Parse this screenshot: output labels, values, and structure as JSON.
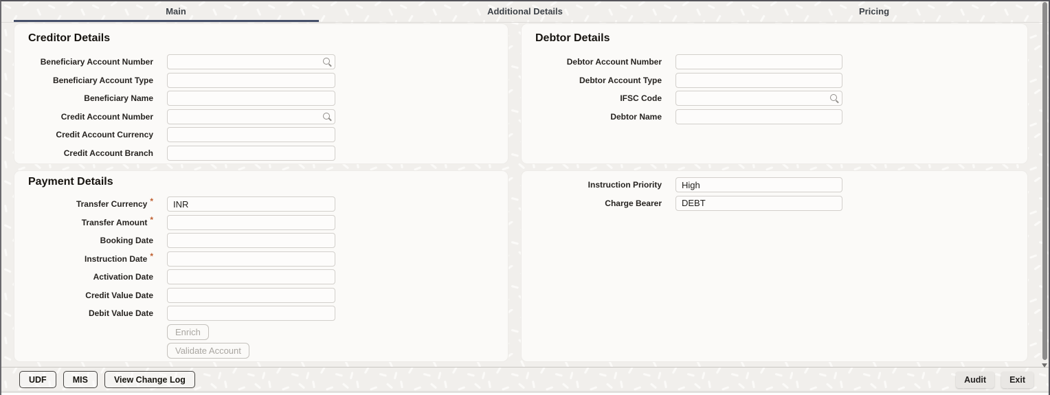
{
  "required_marker": "*",
  "tabs": [
    {
      "label": "Main",
      "active": true
    },
    {
      "label": "Additional Details",
      "active": false
    },
    {
      "label": "Pricing",
      "active": false
    }
  ],
  "panels": {
    "creditor": {
      "title": "Creditor Details",
      "fields": [
        {
          "label": "Beneficiary Account Number",
          "value": "",
          "search": true,
          "required": false
        },
        {
          "label": "Beneficiary Account Type",
          "value": "",
          "search": false,
          "required": false
        },
        {
          "label": "Beneficiary Name",
          "value": "",
          "search": false,
          "required": false
        },
        {
          "label": "Credit Account Number",
          "value": "",
          "search": true,
          "required": false
        },
        {
          "label": "Credit Account Currency",
          "value": "",
          "search": false,
          "required": false
        },
        {
          "label": "Credit Account Branch",
          "value": "",
          "search": false,
          "required": false
        }
      ]
    },
    "debtor": {
      "title": "Debtor Details",
      "fields": [
        {
          "label": "Debtor Account Number",
          "value": "",
          "search": false,
          "required": false
        },
        {
          "label": "Debtor Account Type",
          "value": "",
          "search": false,
          "required": false
        },
        {
          "label": "IFSC Code",
          "value": "",
          "search": true,
          "required": false
        },
        {
          "label": "Debtor Name",
          "value": "",
          "search": false,
          "required": false
        }
      ]
    },
    "payment": {
      "title": "Payment Details",
      "fields": [
        {
          "label": "Transfer Currency",
          "value": "INR",
          "search": false,
          "required": true
        },
        {
          "label": "Transfer Amount",
          "value": "",
          "search": false,
          "required": true
        },
        {
          "label": "Booking Date",
          "value": "",
          "search": false,
          "required": false
        },
        {
          "label": "Instruction Date",
          "value": "",
          "search": false,
          "required": true
        },
        {
          "label": "Activation Date",
          "value": "",
          "search": false,
          "required": false
        },
        {
          "label": "Credit Value Date",
          "value": "",
          "search": false,
          "required": false
        },
        {
          "label": "Debit Value Date",
          "value": "",
          "search": false,
          "required": false
        }
      ],
      "actions": [
        {
          "label": "Enrich",
          "disabled": true
        },
        {
          "label": "Validate Account",
          "disabled": true
        }
      ]
    },
    "instruction": {
      "fields": [
        {
          "label": "Instruction Priority",
          "value": "High",
          "search": false,
          "required": false
        },
        {
          "label": "Charge Bearer",
          "value": "DEBT",
          "search": false,
          "required": false
        }
      ]
    }
  },
  "footer": {
    "left_buttons": [
      {
        "label": "UDF"
      },
      {
        "label": "MIS"
      },
      {
        "label": "View Change Log"
      }
    ],
    "right_buttons": [
      {
        "label": "Audit"
      },
      {
        "label": "Exit"
      }
    ]
  },
  "icons": {
    "search": "search-icon",
    "scroll_down": "chevron-down-icon"
  },
  "colors": {
    "active_tab_underline": "#46506a",
    "required_asterisk": "#bf5e2e",
    "panel_background": "#fbfaf8",
    "field_border": "#d2cfcb",
    "texture_base": "#f1efec",
    "scroll_thumb": "#8d8c8c",
    "label_text": "#262320"
  }
}
